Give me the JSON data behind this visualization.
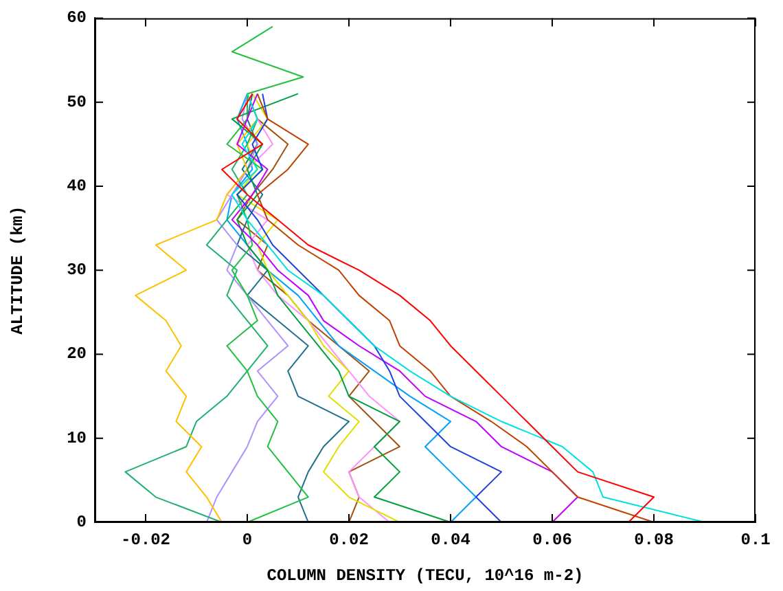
{
  "chart_data": {
    "type": "line",
    "xlabel": "COLUMN DENSITY (TECU, 10^16 m-2)",
    "ylabel": "ALTITUDE (km)",
    "xlim": [
      -0.03,
      0.1
    ],
    "xticks": [
      -0.02,
      0,
      0.02,
      0.04,
      0.06,
      0.08,
      0.1
    ],
    "ylim": [
      0,
      60
    ],
    "yticks": [
      0,
      10,
      20,
      30,
      40,
      50,
      60
    ],
    "grid": false,
    "legend": false,
    "marker": "none",
    "line_style": "solid",
    "series": [
      {
        "color": "#ff0000",
        "x": [
          0.075,
          0.08,
          0.065,
          0.06,
          0.055,
          0.05,
          0.045,
          0.04,
          0.036,
          0.03,
          0.022,
          0.012,
          0.006,
          0,
          -0.005,
          0.003,
          -0.002,
          0.001
        ],
        "values": [
          0,
          3,
          6,
          9,
          12,
          15,
          18,
          21,
          24,
          27,
          30,
          33,
          36,
          39,
          42,
          45,
          48,
          51
        ]
      },
      {
        "color": "#00e0e0",
        "x": [
          0.09,
          0.07,
          0.068,
          0.062,
          0.05,
          0.04,
          0.032,
          0.025,
          0.02,
          0.015,
          0.008,
          0.004,
          0,
          -0.003,
          0.002,
          -0.001,
          0.002,
          0
        ],
        "values": [
          0,
          3,
          6,
          9,
          12,
          15,
          18,
          21,
          24,
          27,
          30,
          33,
          36,
          39,
          42,
          45,
          48,
          51
        ]
      },
      {
        "color": "#c04000",
        "x": [
          0.08,
          0.065,
          0.06,
          0.055,
          0.048,
          0.04,
          0.036,
          0.03,
          0.028,
          0.022,
          0.018,
          0.01,
          0.004,
          0.002,
          0.008,
          0.012,
          0.004,
          0.002
        ],
        "values": [
          0,
          3,
          6,
          9,
          12,
          15,
          18,
          21,
          24,
          27,
          30,
          33,
          36,
          39,
          42,
          45,
          48,
          51
        ]
      },
      {
        "color": "#2040e0",
        "x": [
          0.05,
          0.045,
          0.05,
          0.04,
          0.035,
          0.03,
          0.028,
          0.025,
          0.02,
          0.015,
          0.01,
          0.005,
          0.002,
          -0.002,
          0.003,
          0.001,
          0.004,
          0.003
        ],
        "values": [
          0,
          3,
          6,
          9,
          12,
          15,
          18,
          21,
          24,
          27,
          30,
          33,
          36,
          39,
          42,
          45,
          48,
          51
        ]
      },
      {
        "color": "#c000ff",
        "x": [
          0.06,
          0.065,
          0.06,
          0.05,
          0.045,
          0.035,
          0.03,
          0.022,
          0.015,
          0.012,
          0.006,
          0.002,
          -0.003,
          0.001,
          0.004,
          -0.002,
          0,
          0.002
        ],
        "values": [
          0,
          3,
          6,
          9,
          12,
          15,
          18,
          21,
          24,
          27,
          30,
          33,
          36,
          39,
          42,
          45,
          48,
          51
        ]
      },
      {
        "color": "#00a040",
        "x": [
          0.04,
          0.025,
          0.03,
          0.025,
          0.03,
          0.02,
          0.018,
          0.014,
          0.01,
          0.006,
          0.004,
          0,
          -0.002,
          0.002,
          0,
          0.003,
          -0.003,
          0.01
        ],
        "values": [
          0,
          3,
          6,
          9,
          12,
          15,
          18,
          21,
          24,
          27,
          30,
          33,
          36,
          39,
          42,
          45,
          48,
          51
        ]
      },
      {
        "color": "#20c040",
        "x": [
          0,
          0.012,
          0.008,
          0.004,
          0.006,
          0.002,
          0,
          -0.004,
          0.002,
          0,
          -0.003,
          0.001,
          0,
          -0.002,
          0.003,
          -0.004,
          0,
          0,
          0.011,
          -0.003,
          0.005
        ],
        "values": [
          0,
          3,
          6,
          9,
          12,
          15,
          18,
          21,
          24,
          27,
          30,
          33,
          36,
          39,
          42,
          45,
          48,
          51,
          53,
          56,
          59
        ]
      },
      {
        "color": "#ffc000",
        "x": [
          -0.005,
          -0.008,
          -0.012,
          -0.009,
          -0.014,
          -0.012,
          -0.016,
          -0.013,
          -0.016,
          -0.022,
          -0.012,
          -0.018,
          -0.006,
          -0.004,
          0,
          -0.002,
          0.002,
          0
        ],
        "values": [
          0,
          3,
          6,
          9,
          12,
          15,
          18,
          21,
          24,
          27,
          30,
          33,
          36,
          39,
          42,
          45,
          48,
          51
        ]
      },
      {
        "color": "#20b070",
        "x": [
          -0.005,
          -0.018,
          -0.024,
          -0.012,
          -0.01,
          -0.004,
          0,
          0.004,
          0,
          -0.004,
          -0.002,
          -0.008,
          -0.004,
          0,
          -0.003,
          0,
          0.002,
          0
        ],
        "values": [
          0,
          3,
          6,
          9,
          12,
          15,
          18,
          21,
          24,
          27,
          30,
          33,
          36,
          39,
          42,
          45,
          48,
          51
        ]
      },
      {
        "color": "#b090ff",
        "x": [
          -0.008,
          -0.006,
          -0.003,
          0,
          0.002,
          0.006,
          0.002,
          0.008,
          0.004,
          0,
          -0.004,
          -0.002,
          -0.006,
          -0.003,
          0,
          0.002,
          -0.001,
          0
        ],
        "values": [
          0,
          3,
          6,
          9,
          12,
          15,
          18,
          21,
          24,
          27,
          30,
          33,
          36,
          39,
          42,
          45,
          48,
          51
        ]
      },
      {
        "color": "#207090",
        "x": [
          0.012,
          0.01,
          0.012,
          0.015,
          0.02,
          0.01,
          0.008,
          0.012,
          0.006,
          0,
          0.004,
          -0.002,
          0,
          0.003,
          -0.001,
          0.002,
          0,
          0.001
        ],
        "values": [
          0,
          3,
          6,
          9,
          12,
          15,
          18,
          21,
          24,
          27,
          30,
          33,
          36,
          39,
          42,
          45,
          48,
          51
        ]
      },
      {
        "color": "#e0e000",
        "x": [
          0.03,
          0.02,
          0.015,
          0.018,
          0.022,
          0.016,
          0.02,
          0.015,
          0.012,
          0.008,
          0.004,
          0.002,
          0.006,
          -0.002,
          0.002,
          0,
          0.004,
          0.001
        ],
        "values": [
          0,
          3,
          6,
          9,
          12,
          15,
          18,
          21,
          24,
          27,
          30,
          33,
          36,
          39,
          42,
          45,
          48,
          51
        ]
      },
      {
        "color": "#ff90ff",
        "x": [
          0.028,
          0.022,
          0.02,
          0.025,
          0.03,
          0.024,
          0.02,
          0.016,
          0.012,
          0.006,
          0.002,
          0,
          0.004,
          -0.004,
          0,
          0.005,
          0.002,
          0
        ],
        "values": [
          0,
          3,
          6,
          9,
          12,
          15,
          18,
          21,
          24,
          27,
          30,
          33,
          36,
          39,
          42,
          45,
          48,
          51
        ]
      },
      {
        "color": "#00a0ff",
        "x": [
          0.04,
          0.045,
          0.04,
          0.035,
          0.04,
          0.032,
          0.025,
          0.018,
          0.014,
          0.01,
          0.004,
          0,
          -0.004,
          -0.003,
          0.001,
          0,
          -0.002,
          0
        ],
        "values": [
          0,
          3,
          6,
          9,
          12,
          15,
          18,
          21,
          24,
          27,
          30,
          33,
          36,
          39,
          42,
          45,
          48,
          51
        ]
      },
      {
        "color": "#a05010",
        "x": [
          0.02,
          0.022,
          0.02,
          0.03,
          0.025,
          0.02,
          0.024,
          0.018,
          0.012,
          0.008,
          0.002,
          0.004,
          -0.002,
          0.001,
          0.005,
          0.008,
          0.002,
          0
        ],
        "values": [
          0,
          3,
          6,
          9,
          12,
          15,
          18,
          21,
          24,
          27,
          30,
          33,
          36,
          39,
          42,
          45,
          48,
          51
        ]
      }
    ]
  }
}
